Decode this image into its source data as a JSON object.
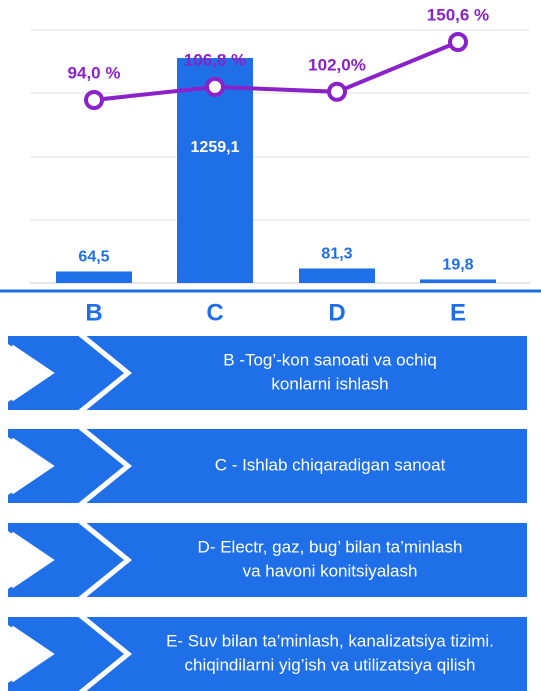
{
  "chart_data": {
    "type": "bar",
    "categories": [
      "B",
      "C",
      "D",
      "E"
    ],
    "values": [
      64.5,
      1259.1,
      81.3,
      19.8
    ],
    "value_labels": [
      "64,5",
      "1259,1",
      "81,3",
      "19,8"
    ],
    "color": "#1f6fe8",
    "line": {
      "type": "line",
      "color": "#8a22c9",
      "values": [
        94.0,
        106.8,
        102.0,
        150.6
      ],
      "value_labels": [
        "94,0 %",
        "106,8 %",
        "102,0%",
        "150,6 %"
      ]
    }
  },
  "descriptions": [
    {
      "lines": [
        "B -Tog’-kon sanoati va ochiq",
        "konlarni ishlash"
      ]
    },
    {
      "lines": [
        "C - Ishlab chiqaradigan sanoat"
      ]
    },
    {
      "lines": [
        "D- Electr, gaz, bug’ bilan ta’minlash",
        "va havoni konitsiyalash"
      ]
    },
    {
      "lines": [
        "E- Suv bilan ta’minlash, kanalizatsiya tizimi.",
        "chiqindilarni yig’ish va utilizatsiya qilish"
      ]
    }
  ]
}
